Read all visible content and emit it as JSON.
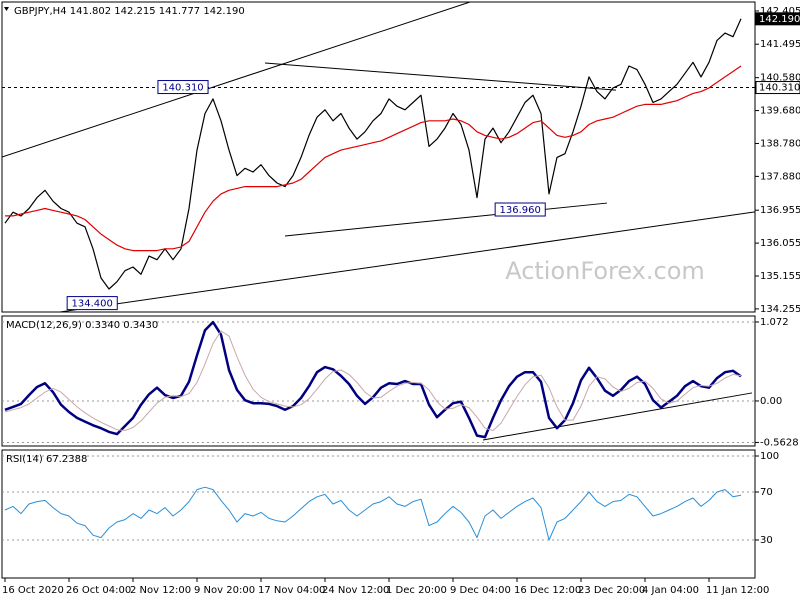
{
  "chart_data": [
    {
      "type": "line",
      "title": "GBPJPY,H4 141.802 142.215 141.777 142.190",
      "ylim": [
        134.17,
        142.65
      ],
      "yticks": [
        142.405,
        141.495,
        {
          "value": 140.58,
          "label": "140.580"
        },
        {
          "value": 139.68,
          "label": "139.680"
        },
        {
          "value": 138.78,
          "label": "138.780"
        },
        {
          "value": 137.88,
          "label": "137.880"
        },
        136.955,
        136.055,
        135.155,
        134.255
      ],
      "watermark": "ActionForex.com",
      "series": [
        {
          "color": "#000000",
          "values": [
            136.6,
            136.9,
            136.8,
            137.0,
            137.3,
            137.5,
            137.2,
            137.0,
            136.9,
            136.6,
            136.5,
            135.9,
            135.1,
            134.8,
            135.0,
            135.3,
            135.4,
            135.2,
            135.7,
            135.6,
            135.9,
            135.6,
            135.9,
            137.0,
            138.6,
            139.6,
            140.0,
            139.4,
            138.6,
            137.9,
            138.1,
            138.0,
            138.2,
            137.9,
            137.7,
            137.6,
            137.9,
            138.4,
            139.0,
            139.5,
            139.7,
            139.4,
            139.6,
            139.2,
            138.9,
            139.1,
            139.4,
            139.6,
            140.0,
            139.8,
            139.7,
            139.9,
            140.1,
            138.7,
            138.9,
            139.2,
            139.6,
            139.3,
            138.6,
            137.3,
            138.9,
            139.2,
            138.8,
            139.1,
            139.5,
            139.9,
            140.1,
            139.6,
            137.4,
            138.4,
            138.5,
            139.1,
            139.8,
            140.6,
            140.2,
            140.0,
            140.3,
            140.4,
            140.9,
            140.8,
            140.4,
            139.9,
            140.0,
            140.2,
            140.4,
            140.7,
            141.0,
            140.6,
            141.0,
            141.6,
            141.8,
            141.7,
            142.19
          ]
        },
        {
          "color": "#e00000",
          "values": [
            136.8,
            136.8,
            136.85,
            136.9,
            136.95,
            137.0,
            136.95,
            136.9,
            136.85,
            136.8,
            136.7,
            136.5,
            136.3,
            136.15,
            136.0,
            135.9,
            135.85,
            135.85,
            135.85,
            135.85,
            135.9,
            135.9,
            135.95,
            136.1,
            136.5,
            136.9,
            137.2,
            137.4,
            137.5,
            137.55,
            137.6,
            137.6,
            137.6,
            137.6,
            137.6,
            137.65,
            137.7,
            137.8,
            138.0,
            138.2,
            138.4,
            138.5,
            138.6,
            138.65,
            138.7,
            138.75,
            138.8,
            138.85,
            138.95,
            139.05,
            139.15,
            139.25,
            139.35,
            139.4,
            139.4,
            139.4,
            139.45,
            139.4,
            139.3,
            139.1,
            139.0,
            138.95,
            138.9,
            138.95,
            139.05,
            139.2,
            139.35,
            139.4,
            139.2,
            139.0,
            138.95,
            139.0,
            139.1,
            139.3,
            139.4,
            139.45,
            139.5,
            139.6,
            139.7,
            139.8,
            139.85,
            139.85,
            139.85,
            139.9,
            139.95,
            140.05,
            140.15,
            140.2,
            140.3,
            140.45,
            140.6,
            140.75,
            140.9
          ]
        }
      ],
      "trendlines": [
        {
          "x": [
            -0.375,
            58.125
          ],
          "y": [
            138.41,
            142.65
          ]
        },
        {
          "x": [
            6.875,
            93.75
          ],
          "y": [
            134.17,
            136.91
          ]
        },
        {
          "x": [
            32.5,
            76.375
          ],
          "y": [
            140.98,
            140.24
          ]
        },
        {
          "x": [
            35,
            75.25
          ],
          "y": [
            136.25,
            137.15
          ]
        }
      ],
      "hlines": [
        140.31
      ],
      "annotations": [
        {
          "x": 22.25,
          "value": 140.31,
          "label": "140.310"
        },
        {
          "x": 64.4,
          "value": 136.96,
          "label": "136.960"
        },
        {
          "x": 10.9,
          "value": 134.4,
          "label": "134.400"
        }
      ],
      "price_tags": [
        {
          "value": 142.19,
          "label": "142.190",
          "color": "#000000"
        },
        {
          "value": 140.31,
          "label": "140.310",
          "color": "#ffffff"
        }
      ]
    },
    {
      "type": "line",
      "title": "MACD(12,26,9) 0.3340 0.3430",
      "ylim": [
        -0.611,
        1.153
      ],
      "yticks": [
        1.072,
        {
          "value": 0,
          "label": "0.00"
        },
        -0.5628
      ],
      "grid": true,
      "series": [
        {
          "color": "#000080",
          "width": 2.5,
          "values": [
            -0.12,
            -0.08,
            -0.04,
            0.08,
            0.19,
            0.24,
            0.12,
            -0.05,
            -0.15,
            -0.23,
            -0.28,
            -0.33,
            -0.37,
            -0.42,
            -0.45,
            -0.34,
            -0.23,
            -0.05,
            0.09,
            0.18,
            0.08,
            0.04,
            0.07,
            0.26,
            0.62,
            0.96,
            1.07,
            0.9,
            0.42,
            0.15,
            0.01,
            -0.03,
            -0.03,
            -0.04,
            -0.07,
            -0.12,
            -0.07,
            0.04,
            0.2,
            0.39,
            0.46,
            0.43,
            0.34,
            0.23,
            0.07,
            -0.04,
            0.05,
            0.18,
            0.24,
            0.23,
            0.27,
            0.23,
            0.23,
            -0.05,
            -0.22,
            -0.12,
            -0.03,
            -0.01,
            -0.23,
            -0.47,
            -0.49,
            -0.23,
            0.01,
            0.2,
            0.33,
            0.39,
            0.39,
            0.26,
            -0.23,
            -0.37,
            -0.26,
            -0.03,
            0.28,
            0.45,
            0.31,
            0.14,
            0.07,
            0.15,
            0.27,
            0.33,
            0.23,
            0.01,
            -0.09,
            -0.01,
            0.07,
            0.2,
            0.27,
            0.2,
            0.18,
            0.31,
            0.39,
            0.41,
            0.334
          ]
        },
        {
          "color": "#c8a8a8",
          "width": 1,
          "values": [
            -0.15,
            -0.12,
            -0.09,
            -0.04,
            0.04,
            0.12,
            0.17,
            0.12,
            0.02,
            -0.08,
            -0.16,
            -0.23,
            -0.29,
            -0.34,
            -0.39,
            -0.4,
            -0.36,
            -0.27,
            -0.15,
            -0.03,
            0.05,
            0.07,
            0.06,
            0.1,
            0.25,
            0.5,
            0.78,
            0.95,
            0.88,
            0.6,
            0.35,
            0.16,
            0.05,
            -0.01,
            -0.04,
            -0.07,
            -0.08,
            -0.05,
            0.03,
            0.16,
            0.3,
            0.4,
            0.42,
            0.36,
            0.25,
            0.12,
            0.04,
            0.05,
            0.13,
            0.2,
            0.24,
            0.25,
            0.24,
            0.15,
            -0.01,
            -0.11,
            -0.1,
            -0.05,
            -0.09,
            -0.22,
            -0.37,
            -0.4,
            -0.3,
            -0.12,
            0.06,
            0.22,
            0.33,
            0.35,
            0.18,
            -0.08,
            -0.26,
            -0.26,
            -0.07,
            0.2,
            0.33,
            0.3,
            0.19,
            0.13,
            0.17,
            0.25,
            0.27,
            0.17,
            0.03,
            -0.03,
            0,
            0.09,
            0.18,
            0.21,
            0.2,
            0.24,
            0.31,
            0.36,
            0.343
          ]
        }
      ],
      "trendlines": [
        {
          "x": [
            59.75,
            93.375
          ],
          "y": [
            -0.529,
            0.109
          ]
        }
      ]
    },
    {
      "type": "line",
      "title": "RSI(14) 67.2388",
      "ylim": [
        -1.7,
        105
      ],
      "yticks": [
        100,
        70,
        30
      ],
      "grid": true,
      "categories": [
        "16 Oct 2020",
        null,
        null,
        null,
        null,
        null,
        null,
        null,
        "26 Oct 04:00",
        null,
        null,
        null,
        null,
        null,
        null,
        null,
        "2 Nov 12:00",
        null,
        null,
        null,
        null,
        null,
        null,
        null,
        "9 Nov 20:00",
        null,
        null,
        null,
        null,
        null,
        null,
        null,
        "17 Nov 04:00",
        null,
        null,
        null,
        null,
        null,
        null,
        null,
        "24 Nov 12:00",
        null,
        null,
        null,
        null,
        null,
        null,
        null,
        "1 Dec 20:00",
        null,
        null,
        null,
        null,
        null,
        null,
        null,
        "9 Dec 04:00",
        null,
        null,
        null,
        null,
        null,
        null,
        null,
        "16 Dec 12:00",
        null,
        null,
        null,
        null,
        null,
        null,
        null,
        "23 Dec 20:00",
        null,
        null,
        null,
        null,
        null,
        null,
        null,
        "4 Jan 04:00",
        null,
        null,
        null,
        null,
        null,
        null,
        null,
        "11 Jan 12:00",
        null,
        null,
        null,
        null
      ],
      "series": [
        {
          "color": "#2a8fd8",
          "width": 1,
          "values": [
            55,
            58,
            52,
            60,
            62,
            63,
            57,
            52,
            50,
            44,
            42,
            34,
            32,
            40,
            45,
            47,
            52,
            48,
            55,
            52,
            57,
            50,
            55,
            62,
            72,
            74,
            72,
            63,
            55,
            45,
            52,
            50,
            53,
            48,
            46,
            45,
            50,
            56,
            62,
            66,
            68,
            60,
            63,
            55,
            50,
            55,
            60,
            62,
            66,
            60,
            58,
            62,
            64,
            42,
            45,
            52,
            58,
            53,
            45,
            32,
            50,
            55,
            48,
            53,
            58,
            62,
            65,
            57,
            30,
            45,
            48,
            55,
            62,
            70,
            62,
            58,
            62,
            63,
            68,
            66,
            58,
            50,
            52,
            55,
            58,
            62,
            65,
            58,
            63,
            70,
            72,
            66,
            67.2388
          ]
        }
      ]
    }
  ]
}
